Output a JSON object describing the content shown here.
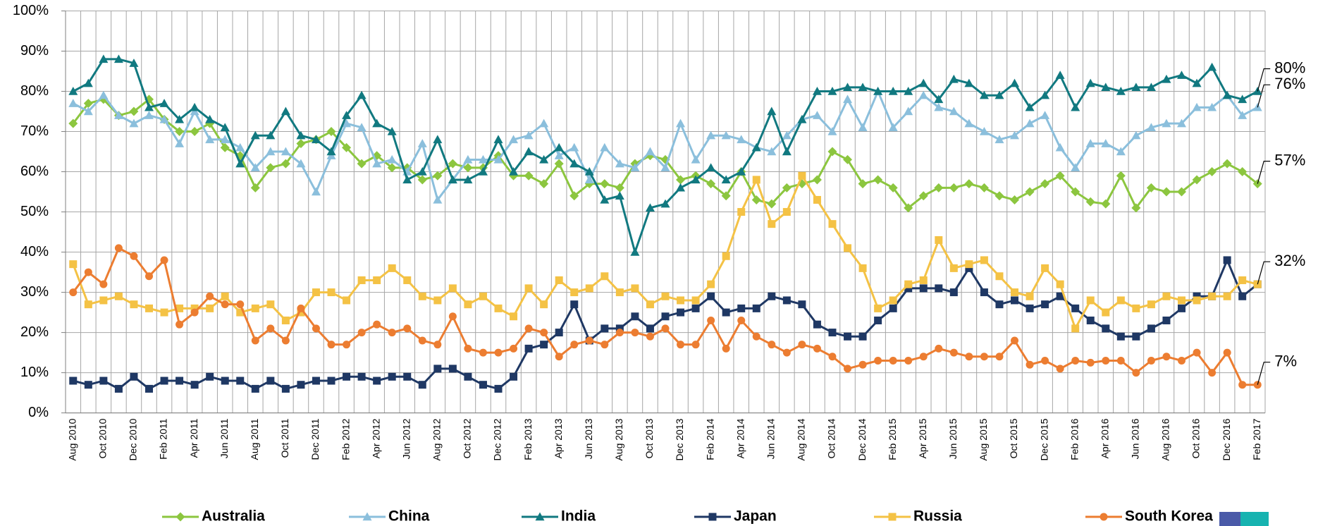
{
  "chart_data": {
    "type": "line",
    "categories": [
      "Aug 2010",
      null,
      "Oct 2010",
      null,
      "Dec 2010",
      null,
      "Feb 2011",
      null,
      "Apr 2011",
      null,
      "Jun 2011",
      null,
      "Aug 2011",
      null,
      "Oct 2011",
      null,
      "Dec 2011",
      null,
      "Feb 2012",
      null,
      "Apr 2012",
      null,
      "Jun 2012",
      null,
      "Aug 2012",
      null,
      "Oct 2012",
      null,
      "Dec 2012",
      null,
      "Feb 2013",
      null,
      "Apr 2013",
      null,
      "Jun 2013",
      null,
      "Aug 2013",
      null,
      "Oct 2013",
      null,
      "Dec 2013",
      null,
      "Feb 2014",
      null,
      "Apr 2014",
      null,
      "Jun 2014",
      null,
      "Aug 2014",
      null,
      "Oct 2014",
      null,
      "Dec 2014",
      null,
      "Feb 2015",
      null,
      "Apr 2015",
      null,
      "Jun 2015",
      null,
      "Aug 2015",
      null,
      "Oct 2015",
      null,
      "Dec 2015",
      null,
      "Feb 2016",
      null,
      "Apr 2016",
      null,
      "Jun 2016",
      null,
      "Aug 2016",
      null,
      "Oct 2016",
      null,
      "Dec 2016",
      null,
      "Feb 2017"
    ],
    "ylim": [
      0,
      100
    ],
    "yticks": [
      {
        "value": 0,
        "label": "0%"
      },
      {
        "value": 10,
        "label": "10%"
      },
      {
        "value": 20,
        "label": "20%"
      },
      {
        "value": 30,
        "label": "30%"
      },
      {
        "value": 40,
        "label": "40%"
      },
      {
        "value": 50,
        "label": "50%"
      },
      {
        "value": 60,
        "label": "60%"
      },
      {
        "value": 70,
        "label": "70%"
      },
      {
        "value": 80,
        "label": "80%"
      },
      {
        "value": 90,
        "label": "90%"
      },
      {
        "value": 100,
        "label": "100%"
      }
    ],
    "grid": true,
    "legend": "bottom",
    "series": [
      {
        "name": "Australia",
        "color": "#8cc63f",
        "marker": "diamond",
        "values": [
          72,
          77,
          78,
          74,
          75,
          78,
          73,
          70,
          70,
          72,
          66,
          64,
          56,
          61,
          62,
          67,
          68,
          70,
          66,
          62,
          64,
          61,
          61,
          58,
          59,
          62,
          61,
          61,
          64,
          59,
          59,
          57,
          62,
          54,
          57,
          57,
          56,
          62,
          64,
          63,
          58,
          59,
          57,
          54,
          60,
          53,
          52,
          56,
          57,
          58,
          65,
          63,
          57,
          58,
          56,
          51,
          54,
          56,
          56,
          57,
          56,
          54,
          53,
          55,
          57,
          59,
          55,
          52.5,
          52,
          59,
          51,
          56,
          55,
          55,
          58,
          60,
          62,
          60,
          57
        ],
        "value_labels": [
          null,
          null,
          null,
          null,
          null,
          null,
          null,
          null,
          null,
          null,
          null,
          null,
          null,
          null,
          null,
          null,
          null,
          null,
          null,
          null,
          null,
          null,
          null,
          null,
          null,
          null,
          null,
          null,
          null,
          null,
          null,
          null,
          null,
          null,
          null,
          null,
          null,
          null,
          null,
          null,
          null,
          null,
          null,
          null,
          null,
          null,
          null,
          null,
          null,
          null,
          null,
          null,
          null,
          null,
          null,
          null,
          null,
          null,
          null,
          null,
          null,
          null,
          null,
          null,
          null,
          null,
          null,
          null,
          null,
          null,
          null,
          null,
          null,
          null,
          null,
          null,
          null,
          null,
          "57%"
        ]
      },
      {
        "name": "China",
        "color": "#8bbfdc",
        "marker": "triangle",
        "values": [
          77,
          75,
          79,
          74,
          72,
          74,
          73,
          67,
          75,
          68,
          68,
          66,
          61,
          65,
          65,
          62,
          55,
          64,
          72,
          71,
          62,
          63,
          60,
          67,
          53,
          58,
          63,
          63,
          63,
          68,
          69,
          72,
          64,
          66,
          58,
          66,
          62,
          61,
          65,
          61,
          72,
          63,
          69,
          69,
          68,
          66,
          65,
          69,
          73,
          74,
          70,
          78,
          71,
          80,
          71,
          75,
          79,
          76,
          75,
          72,
          70,
          68,
          69,
          72,
          74,
          66,
          61,
          67,
          67,
          65,
          69,
          71,
          72,
          72,
          76,
          76,
          79,
          74,
          76
        ],
        "value_labels": [
          null,
          null,
          null,
          null,
          null,
          null,
          null,
          null,
          null,
          null,
          null,
          null,
          null,
          null,
          null,
          null,
          null,
          null,
          null,
          null,
          null,
          null,
          null,
          null,
          null,
          null,
          null,
          null,
          null,
          null,
          null,
          null,
          null,
          null,
          null,
          null,
          null,
          null,
          null,
          null,
          null,
          null,
          null,
          null,
          null,
          null,
          null,
          null,
          null,
          null,
          null,
          null,
          null,
          null,
          null,
          null,
          null,
          null,
          null,
          null,
          null,
          null,
          null,
          null,
          null,
          null,
          null,
          null,
          null,
          null,
          null,
          null,
          null,
          null,
          null,
          null,
          null,
          null,
          "76%"
        ]
      },
      {
        "name": "India",
        "color": "#117980",
        "marker": "triangle",
        "values": [
          80,
          82,
          88,
          88,
          87,
          76,
          77,
          73,
          76,
          73,
          71,
          62,
          69,
          69,
          75,
          69,
          68,
          65,
          74,
          79,
          72,
          70,
          58,
          60,
          68,
          58,
          58,
          60,
          68,
          60,
          65,
          63,
          66,
          62,
          60,
          53,
          54,
          40,
          51,
          52,
          56,
          58,
          61,
          58,
          60,
          66,
          75,
          65,
          73,
          80,
          80,
          81,
          81,
          80,
          80,
          80,
          82,
          78,
          83,
          82,
          79,
          79,
          82,
          76,
          79,
          84,
          76,
          82,
          81,
          80,
          81,
          81,
          83,
          84,
          82,
          86,
          79,
          78,
          80
        ],
        "value_labels": [
          null,
          null,
          null,
          null,
          null,
          null,
          null,
          null,
          null,
          null,
          null,
          null,
          null,
          null,
          null,
          null,
          null,
          null,
          null,
          null,
          null,
          null,
          null,
          null,
          null,
          null,
          null,
          null,
          null,
          null,
          null,
          null,
          null,
          null,
          null,
          null,
          null,
          null,
          null,
          null,
          null,
          null,
          null,
          null,
          null,
          null,
          null,
          null,
          null,
          null,
          null,
          null,
          null,
          null,
          null,
          null,
          null,
          null,
          null,
          null,
          null,
          null,
          null,
          null,
          null,
          null,
          null,
          null,
          null,
          null,
          null,
          null,
          null,
          null,
          null,
          null,
          null,
          null,
          "80%"
        ]
      },
      {
        "name": "Japan",
        "color": "#1f3864",
        "marker": "square",
        "values": [
          8,
          7,
          8,
          6,
          9,
          6,
          8,
          8,
          7,
          9,
          8,
          8,
          6,
          8,
          6,
          7,
          8,
          8,
          9,
          9,
          8,
          9,
          9,
          7,
          11,
          11,
          9,
          7,
          6,
          9,
          16,
          17,
          20,
          27,
          18,
          21,
          21,
          24,
          21,
          24,
          25,
          26,
          29,
          25,
          26,
          26,
          29,
          28,
          27,
          22,
          20,
          19,
          19,
          23,
          26,
          31,
          31,
          31,
          30,
          36,
          30,
          27,
          28,
          26,
          27,
          29,
          26,
          23,
          21,
          19,
          19,
          21,
          23,
          26,
          29,
          29,
          38,
          29,
          32
        ]
      },
      {
        "name": "Russia",
        "color": "#f4c245",
        "marker": "square",
        "values": [
          37,
          27,
          28,
          29,
          27,
          26,
          25,
          26,
          26,
          26,
          29,
          25,
          26,
          27,
          23,
          25,
          30,
          30,
          28,
          33,
          33,
          36,
          33,
          29,
          28,
          31,
          27,
          29,
          26,
          24,
          31,
          27,
          33,
          30,
          31,
          34,
          30,
          31,
          27,
          29,
          28,
          28,
          32,
          39,
          50,
          58,
          47,
          50,
          59,
          53,
          47,
          41,
          36,
          26,
          28,
          32,
          33,
          43,
          36,
          37,
          38,
          34,
          30,
          29,
          36,
          32,
          21,
          28,
          25,
          28,
          26,
          27,
          29,
          28,
          28,
          29,
          29,
          33,
          32
        ],
        "value_labels": [
          null,
          null,
          null,
          null,
          null,
          null,
          null,
          null,
          null,
          null,
          null,
          null,
          null,
          null,
          null,
          null,
          null,
          null,
          null,
          null,
          null,
          null,
          null,
          null,
          null,
          null,
          null,
          null,
          null,
          null,
          null,
          null,
          null,
          null,
          null,
          null,
          null,
          null,
          null,
          null,
          null,
          null,
          null,
          null,
          null,
          null,
          null,
          null,
          null,
          null,
          null,
          null,
          null,
          null,
          null,
          null,
          null,
          null,
          null,
          null,
          null,
          null,
          null,
          null,
          null,
          null,
          null,
          null,
          null,
          null,
          null,
          null,
          null,
          null,
          null,
          null,
          null,
          null,
          "32%"
        ]
      },
      {
        "name": "South Korea",
        "color": "#ec7d31",
        "marker": "circle",
        "values": [
          30,
          35,
          32,
          41,
          39,
          34,
          38,
          22,
          25,
          29,
          27,
          27,
          18,
          21,
          18,
          26,
          21,
          17,
          17,
          20,
          22,
          20,
          21,
          18,
          17,
          24,
          16,
          15,
          15,
          16,
          21,
          20,
          14,
          17,
          18,
          17,
          20,
          20,
          19,
          21,
          17,
          17,
          23,
          16,
          23,
          19,
          17,
          15,
          17,
          16,
          14,
          11,
          12,
          13,
          13,
          13,
          14,
          16,
          15,
          14,
          14,
          14,
          18,
          12,
          13,
          11,
          13,
          12.5,
          13,
          13,
          10,
          13,
          14,
          13,
          15,
          10,
          15,
          7,
          7
        ],
        "value_labels": [
          null,
          null,
          null,
          null,
          null,
          null,
          null,
          null,
          null,
          null,
          null,
          null,
          null,
          null,
          null,
          null,
          null,
          null,
          null,
          null,
          null,
          null,
          null,
          null,
          null,
          null,
          null,
          null,
          null,
          null,
          null,
          null,
          null,
          null,
          null,
          null,
          null,
          null,
          null,
          null,
          null,
          null,
          null,
          null,
          null,
          null,
          null,
          null,
          null,
          null,
          null,
          null,
          null,
          null,
          null,
          null,
          null,
          null,
          null,
          null,
          null,
          null,
          null,
          null,
          null,
          null,
          null,
          null,
          null,
          null,
          null,
          null,
          null,
          null,
          null,
          null,
          null,
          null,
          "7%"
        ]
      }
    ]
  }
}
